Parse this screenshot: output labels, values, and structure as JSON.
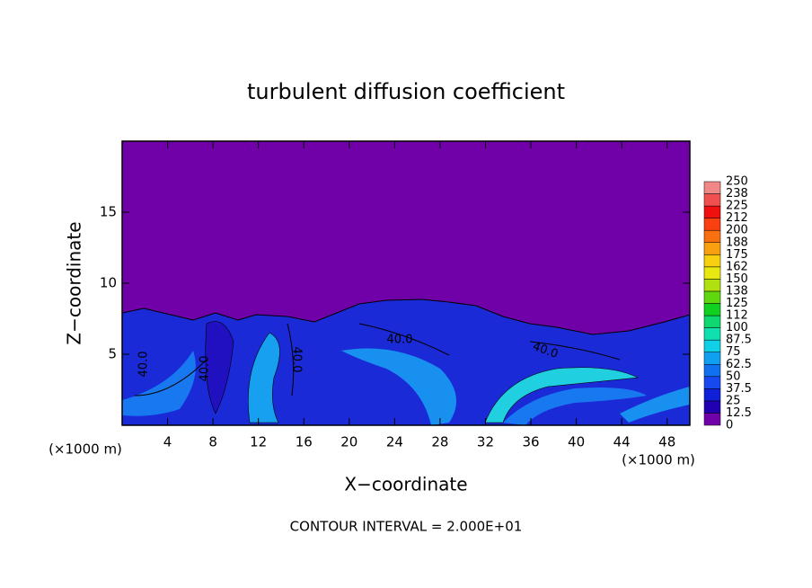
{
  "chart_data": {
    "type": "contour",
    "title": "turbulent diffusion coefficient",
    "x_label": "X−coordinate",
    "y_label": "Z−coordinate",
    "x_unit_left": "(×1000 m)",
    "x_unit_right": "(×1000 m)",
    "footer": "CONTOUR INTERVAL = 2.000E+01",
    "xlim": [
      0,
      50
    ],
    "xticks": [
      4,
      8,
      12,
      16,
      20,
      24,
      28,
      32,
      36,
      40,
      44,
      48
    ],
    "ylim": [
      0,
      20
    ],
    "yticks": [
      5,
      10,
      15
    ],
    "contour_labels": [
      "40.0",
      "40.0",
      "40.0",
      "40.0",
      "40.0"
    ],
    "colorbar": {
      "ticks": [
        0,
        12.5,
        25,
        37.5,
        50,
        62.5,
        75,
        87.5,
        100,
        {
          "value": 112.5,
          "label": "112"
        },
        125,
        {
          "value": 137.5,
          "label": "138"
        },
        150,
        {
          "value": 162.5,
          "label": "162"
        },
        175,
        {
          "value": 187.5,
          "label": "188"
        },
        200,
        {
          "value": 212.5,
          "label": "212"
        },
        225,
        {
          "value": 237.5,
          "label": "238"
        },
        250
      ],
      "colors": [
        "#7000a8",
        "#2000b0",
        "#1020d8",
        "#1848f0",
        "#1070f0",
        "#10a0f0",
        "#10d0e8",
        "#10e0b0",
        "#10d870",
        "#10d020",
        "#60d810",
        "#b0e010",
        "#e8e810",
        "#f8d010",
        "#f8a010",
        "#f87010",
        "#f84010",
        "#f01010",
        "#f05050",
        "#f08888"
      ]
    }
  }
}
